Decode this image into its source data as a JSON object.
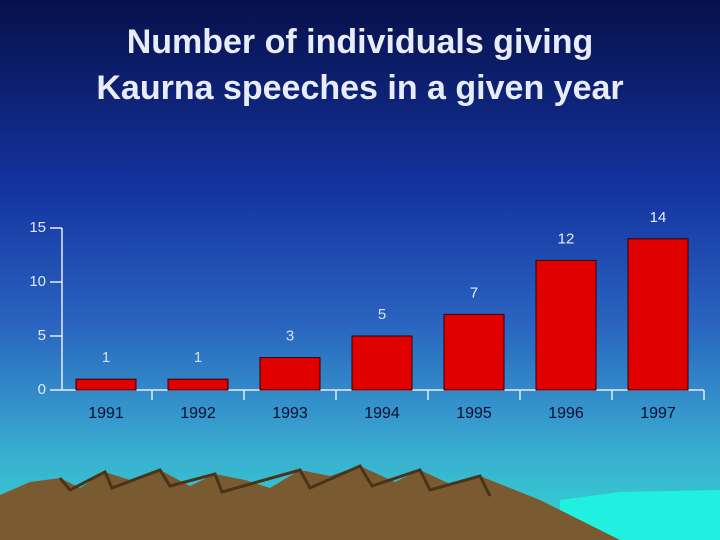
{
  "chart_data": {
    "type": "bar",
    "title": [
      "Number of individuals giving",
      "Kaurna speeches in a given year"
    ],
    "categories": [
      "1991",
      "1992",
      "1993",
      "1994",
      "1995",
      "1996",
      "1997"
    ],
    "values": [
      1,
      1,
      3,
      5,
      7,
      12,
      14
    ],
    "color": "#e00000",
    "ylim": [
      0,
      15
    ],
    "yticks": [
      0,
      5,
      10,
      15
    ],
    "grid": false
  }
}
